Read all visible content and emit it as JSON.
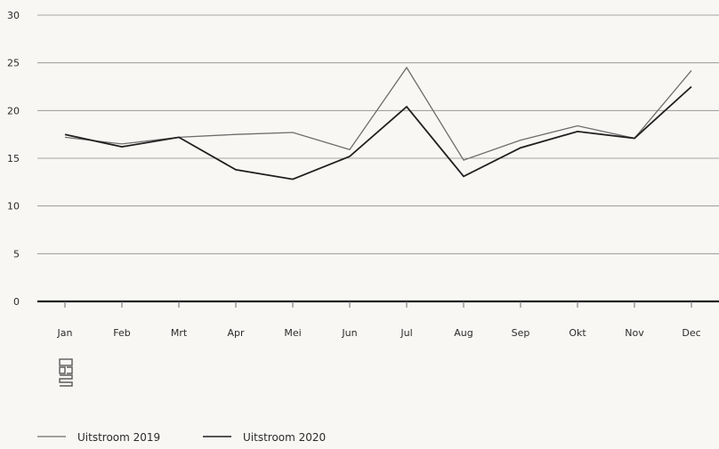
{
  "chart_data": {
    "type": "line",
    "categories": [
      "Jan",
      "Feb",
      "Mrt",
      "Apr",
      "Mei",
      "Jun",
      "Jul",
      "Aug",
      "Sep",
      "Okt",
      "Nov",
      "Dec"
    ],
    "series": [
      {
        "name": "Uitstroom 2019",
        "color": "#6d6d6d",
        "values": [
          17.2,
          16.5,
          17.2,
          17.5,
          17.7,
          15.9,
          24.5,
          14.8,
          16.9,
          18.4,
          17.1,
          24.2
        ]
      },
      {
        "name": "Uitstroom 2020",
        "color": "#1f1f1f",
        "values": [
          17.5,
          16.2,
          17.2,
          13.8,
          12.8,
          15.2,
          20.4,
          13.1,
          16.1,
          17.8,
          17.1,
          22.5
        ]
      }
    ],
    "ylim": [
      0,
      30
    ],
    "yticks": [
      0,
      5,
      10,
      15,
      20,
      25,
      30
    ],
    "ytick_labels": [
      "0",
      "5",
      "10",
      "15",
      "20",
      "25",
      "30"
    ],
    "title": "",
    "xlabel": "",
    "ylabel": "",
    "grid": true,
    "legend_position": "bottom-left"
  },
  "logo": {
    "name": "cbs-logo",
    "text": "cbs"
  }
}
